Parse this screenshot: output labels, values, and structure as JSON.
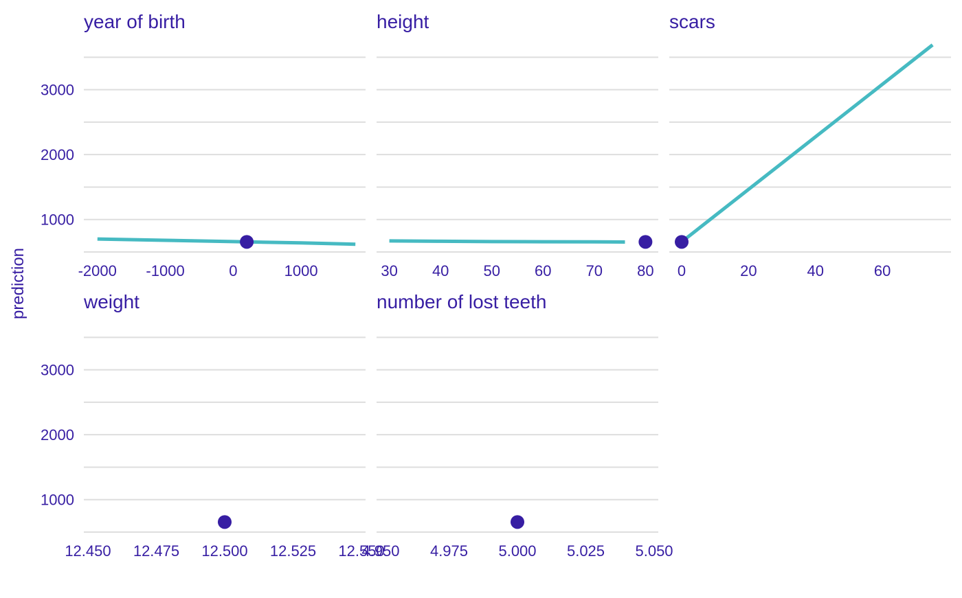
{
  "figure": {
    "ylabel": "prediction",
    "colors": {
      "text": "#371ea3",
      "line": "#46bac2",
      "point": "#371ea3",
      "grid": "#dedede",
      "background": "#ffffff"
    }
  },
  "chart_data": [
    {
      "type": "line",
      "title": "year  of  birth",
      "xlabel": "",
      "ylabel": "prediction",
      "xlim": [
        -2200,
        1950
      ],
      "ylim": [
        500,
        3800
      ],
      "xticks": [
        -2000,
        -1000,
        0,
        1000
      ],
      "xtick_labels": [
        "-2000",
        "-1000",
        "0",
        "1000"
      ],
      "yticks": [
        1000,
        2000,
        3000
      ],
      "ytick_labels": [
        "1000",
        "2000",
        "3000"
      ],
      "grid": true,
      "series": [
        {
          "x": [
            -2000,
            -1000,
            0,
            1000,
            1800
          ],
          "y": [
            700,
            680,
            660,
            640,
            620
          ]
        }
      ],
      "point": {
        "x": 200,
        "y": 655
      }
    },
    {
      "type": "line",
      "title": "height",
      "xlabel": "",
      "ylabel": "prediction",
      "xlim": [
        27.5,
        82.5
      ],
      "ylim": [
        500,
        3800
      ],
      "xticks": [
        30,
        40,
        50,
        60,
        70,
        80
      ],
      "xtick_labels": [
        "30",
        "40",
        "50",
        "60",
        "70",
        "80"
      ],
      "yticks": [
        1000,
        2000,
        3000
      ],
      "ytick_labels": [
        "1000",
        "2000",
        "3000"
      ],
      "grid": true,
      "series": [
        {
          "x": [
            30,
            40,
            50,
            60,
            70,
            76
          ],
          "y": [
            670,
            665,
            660,
            658,
            655,
            653
          ]
        }
      ],
      "point": {
        "x": 80,
        "y": 655
      }
    },
    {
      "type": "line",
      "title": "scars",
      "xlabel": "",
      "ylabel": "prediction",
      "xlim": [
        -3.7,
        80.5
      ],
      "ylim": [
        500,
        3800
      ],
      "xticks": [
        0,
        20,
        40,
        60
      ],
      "xtick_labels": [
        "0",
        "20",
        "40",
        "60"
      ],
      "yticks": [
        1000,
        2000,
        3000
      ],
      "ytick_labels": [
        "1000",
        "2000",
        "3000"
      ],
      "grid": true,
      "series": [
        {
          "x": [
            0,
            75
          ],
          "y": [
            655,
            3690
          ]
        }
      ],
      "point": {
        "x": 0,
        "y": 655
      }
    },
    {
      "type": "scatter",
      "title": "weight",
      "xlabel": "",
      "ylabel": "prediction",
      "xlim": [
        12.4485,
        12.5515
      ],
      "ylim": [
        500,
        3800
      ],
      "xticks": [
        12.45,
        12.475,
        12.5,
        12.525,
        12.55
      ],
      "xtick_labels": [
        "12.450",
        "12.475",
        "12.500",
        "12.525",
        "12.550"
      ],
      "yticks": [
        1000,
        2000,
        3000
      ],
      "ytick_labels": [
        "1000",
        "2000",
        "3000"
      ],
      "grid": true,
      "series": [],
      "point": {
        "x": 12.5,
        "y": 655
      }
    },
    {
      "type": "scatter",
      "title": "number  of  lost  teeth",
      "xlabel": "",
      "ylabel": "prediction",
      "xlim": [
        4.9485,
        5.0515
      ],
      "ylim": [
        500,
        3800
      ],
      "xticks": [
        4.95,
        4.975,
        5.0,
        5.025,
        5.05
      ],
      "xtick_labels": [
        "4.950",
        "4.975",
        "5.000",
        "5.025",
        "5.050"
      ],
      "yticks": [
        1000,
        2000,
        3000
      ],
      "ytick_labels": [
        "1000",
        "2000",
        "3000"
      ],
      "grid": true,
      "series": [],
      "point": {
        "x": 5.0,
        "y": 655
      }
    }
  ]
}
